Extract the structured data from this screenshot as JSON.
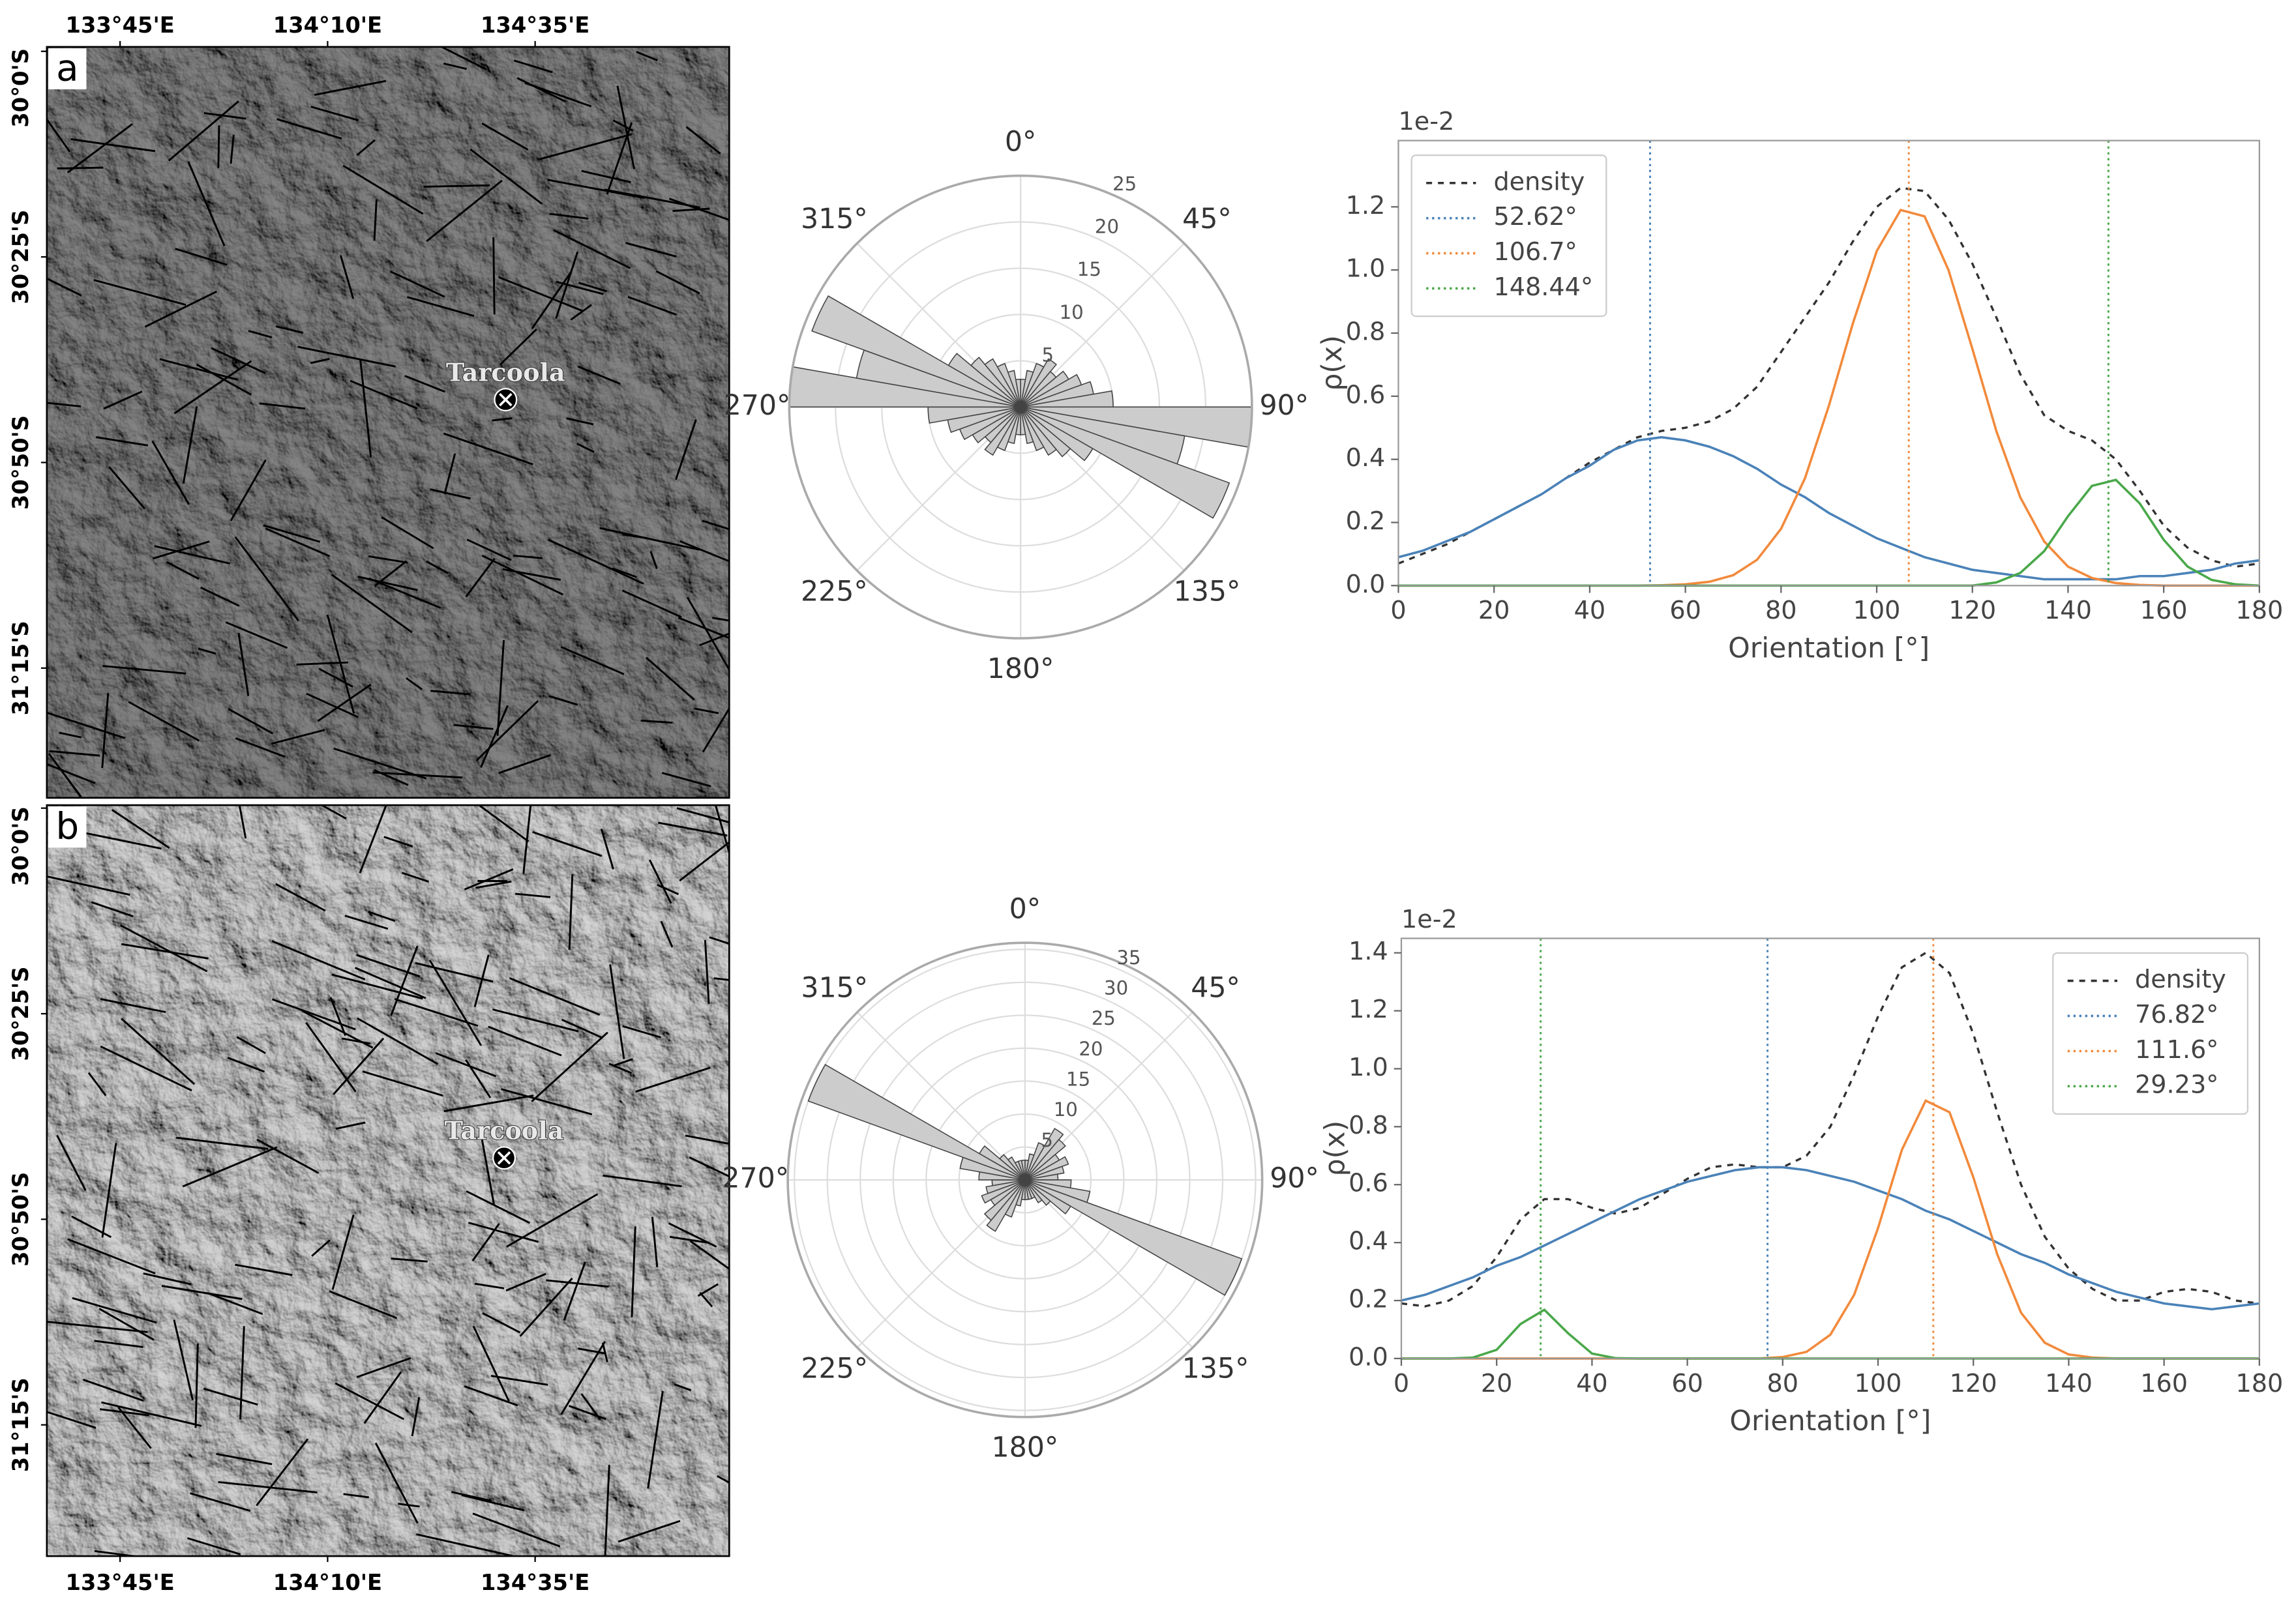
{
  "chart_data": [
    {
      "type": "map",
      "label": "a",
      "color": "#7a7a7a",
      "xtick_side": "top",
      "place": {
        "name": "Tarcoola",
        "lon": 134.524,
        "lat": -30.706
      },
      "xlim": [
        133.603,
        134.973
      ],
      "ylim": [
        -31.513,
        -29.991
      ],
      "xticks": [
        {
          "value": 133.75,
          "label": "133°45'E"
        },
        {
          "value": 134.1667,
          "label": "134°10'E"
        },
        {
          "value": 134.5833,
          "label": "134°35'E"
        }
      ],
      "yticks": [
        {
          "value": -30,
          "label": "30°0'S"
        },
        {
          "value": -30.4167,
          "label": "30°25'S"
        },
        {
          "value": -30.8333,
          "label": "30°50'S"
        },
        {
          "value": -31.25,
          "label": "31°15'S"
        }
      ]
    },
    {
      "type": "rose",
      "color": "#cccccc",
      "theta": [
        5,
        15,
        25,
        35,
        45,
        55,
        65,
        75,
        85,
        95,
        105,
        115,
        125,
        135,
        145,
        155,
        165,
        175,
        185,
        195,
        205,
        215,
        225,
        235,
        245,
        255,
        265,
        275,
        285,
        295,
        305,
        315,
        325,
        335,
        345,
        355
      ],
      "values": [
        3,
        4,
        5,
        6,
        5,
        6,
        7,
        8,
        10,
        25,
        18,
        24,
        9,
        7,
        6,
        5,
        4,
        3,
        3,
        4,
        5,
        6,
        5,
        6,
        7,
        8,
        10,
        25,
        18,
        24,
        9,
        7,
        6,
        5,
        4,
        3
      ],
      "xticks": [
        {
          "value": 0,
          "label": "0°"
        },
        {
          "value": 45,
          "label": "45°"
        },
        {
          "value": 90,
          "label": "90°"
        },
        {
          "value": 135,
          "label": "135°"
        },
        {
          "value": 180,
          "label": "180°"
        },
        {
          "value": 225,
          "label": "225°"
        },
        {
          "value": 270,
          "label": "270°"
        },
        {
          "value": 315,
          "label": "315°"
        }
      ],
      "ylim": [
        0,
        25
      ],
      "yticks": [
        5,
        10,
        15,
        20,
        25
      ]
    },
    {
      "type": "line",
      "xlabel": "Orientation [°]",
      "ylabel": "ρ(x)",
      "offset_label": "1e-2",
      "legend": "upper left",
      "x": [
        0,
        5,
        10,
        15,
        20,
        25,
        30,
        35,
        40,
        45,
        50,
        55,
        60,
        65,
        70,
        75,
        80,
        85,
        90,
        95,
        100,
        105,
        110,
        115,
        120,
        125,
        130,
        135,
        140,
        145,
        150,
        155,
        160,
        165,
        170,
        175,
        180
      ],
      "series": [
        {
          "name": "density",
          "color": "#333333",
          "style": "dashed",
          "values": [
            0.07,
            0.1,
            0.13,
            0.17,
            0.21,
            0.25,
            0.29,
            0.34,
            0.39,
            0.43,
            0.47,
            0.49,
            0.5,
            0.52,
            0.56,
            0.63,
            0.74,
            0.85,
            0.96,
            1.09,
            1.2,
            1.26,
            1.25,
            1.16,
            1.02,
            0.85,
            0.67,
            0.54,
            0.49,
            0.46,
            0.4,
            0.3,
            0.19,
            0.12,
            0.08,
            0.06,
            0.07
          ]
        },
        {
          "color": "#4a82b8",
          "style": "solid",
          "values": [
            0.09,
            0.11,
            0.14,
            0.17,
            0.21,
            0.25,
            0.29,
            0.34,
            0.38,
            0.43,
            0.46,
            0.47,
            0.46,
            0.44,
            0.41,
            0.37,
            0.32,
            0.28,
            0.23,
            0.19,
            0.15,
            0.12,
            0.09,
            0.07,
            0.05,
            0.04,
            0.03,
            0.02,
            0.02,
            0.02,
            0.02,
            0.03,
            0.03,
            0.04,
            0.05,
            0.07,
            0.08
          ]
        },
        {
          "color": "#f28a3c",
          "style": "solid",
          "values": [
            0,
            0,
            0,
            0,
            0,
            0,
            0,
            0,
            0,
            0,
            0,
            0.001,
            0.004,
            0.012,
            0.033,
            0.082,
            0.18,
            0.34,
            0.57,
            0.83,
            1.06,
            1.19,
            1.17,
            1.0,
            0.75,
            0.49,
            0.28,
            0.14,
            0.06,
            0.024,
            0.008,
            0.002,
            0,
            0,
            0,
            0,
            0
          ]
        },
        {
          "color": "#4aa84a",
          "style": "solid",
          "values": [
            0,
            0,
            0,
            0,
            0,
            0,
            0,
            0,
            0,
            0,
            0,
            0,
            0,
            0,
            0,
            0,
            0,
            0,
            0,
            0,
            0,
            0,
            0,
            0,
            0,
            0.01,
            0.04,
            0.109,
            0.22,
            0.316,
            0.335,
            0.26,
            0.145,
            0.06,
            0.018,
            0.004,
            0
          ]
        }
      ],
      "markers": [
        {
          "name": "52.62°",
          "value": 52.62,
          "color": "#4a82b8"
        },
        {
          "name": "106.7°",
          "value": 106.7,
          "color": "#f28a3c"
        },
        {
          "name": "148.44°",
          "value": 148.44,
          "color": "#4aa84a"
        }
      ],
      "xlim": [
        0,
        180
      ],
      "xticks": [
        0,
        20,
        40,
        60,
        80,
        100,
        120,
        140,
        160,
        180
      ],
      "ylim": [
        0,
        1.41
      ],
      "yticks": [
        {
          "value": 0,
          "label": "0.0"
        },
        {
          "value": 0.2,
          "label": "0.2"
        },
        {
          "value": 0.4,
          "label": "0.4"
        },
        {
          "value": 0.6,
          "label": "0.6"
        },
        {
          "value": 0.8,
          "label": "0.8"
        },
        {
          "value": 1.0,
          "label": "1.0"
        },
        {
          "value": 1.2,
          "label": "1.2"
        }
      ]
    },
    {
      "type": "map",
      "label": "b",
      "color": "#c4c4c4",
      "xtick_side": "bottom",
      "place": {
        "name": "Tarcoola",
        "lon": 134.521,
        "lat": -30.709
      },
      "xlim": [
        133.603,
        134.973
      ],
      "ylim": [
        -31.516,
        -29.994
      ],
      "xticks": [
        {
          "value": 133.75,
          "label": "133°45'E"
        },
        {
          "value": 134.1667,
          "label": "134°10'E"
        },
        {
          "value": 134.5833,
          "label": "134°35'E"
        }
      ],
      "yticks": [
        {
          "value": -30,
          "label": "30°0'S"
        },
        {
          "value": -30.4167,
          "label": "30°25'S"
        },
        {
          "value": -30.8333,
          "label": "30°50'S"
        },
        {
          "value": -31.25,
          "label": "31°15'S"
        }
      ]
    },
    {
      "type": "rose",
      "color": "#cccccc",
      "theta": [
        5,
        15,
        25,
        35,
        45,
        55,
        65,
        75,
        85,
        95,
        105,
        115,
        125,
        135,
        145,
        155,
        165,
        175,
        185,
        195,
        205,
        215,
        225,
        235,
        245,
        255,
        265,
        275,
        285,
        295,
        305,
        315,
        325,
        335,
        345,
        355
      ],
      "values": [
        3,
        4,
        6,
        9,
        8,
        6,
        7,
        6,
        5,
        7,
        10,
        35,
        8,
        5,
        4,
        3,
        3,
        3,
        3,
        4,
        6,
        9,
        8,
        6,
        7,
        6,
        5,
        7,
        10,
        35,
        8,
        5,
        4,
        3,
        3,
        3
      ],
      "xticks": [
        {
          "value": 0,
          "label": "0°"
        },
        {
          "value": 45,
          "label": "45°"
        },
        {
          "value": 90,
          "label": "90°"
        },
        {
          "value": 135,
          "label": "135°"
        },
        {
          "value": 180,
          "label": "180°"
        },
        {
          "value": 225,
          "label": "225°"
        },
        {
          "value": 270,
          "label": "270°"
        },
        {
          "value": 315,
          "label": "315°"
        }
      ],
      "ylim": [
        0,
        36
      ],
      "yticks": [
        5,
        10,
        15,
        20,
        25,
        30,
        35
      ]
    },
    {
      "type": "line",
      "xlabel": "Orientation [°]",
      "ylabel": "ρ(x)",
      "offset_label": "1e-2",
      "legend": "upper right",
      "x": [
        0,
        5,
        10,
        15,
        20,
        25,
        30,
        35,
        40,
        45,
        50,
        55,
        60,
        65,
        70,
        75,
        80,
        85,
        90,
        95,
        100,
        105,
        110,
        115,
        120,
        125,
        130,
        135,
        140,
        145,
        150,
        155,
        160,
        165,
        170,
        175,
        180
      ],
      "series": [
        {
          "name": "density",
          "color": "#333333",
          "style": "dashed",
          "values": [
            0.19,
            0.18,
            0.2,
            0.25,
            0.35,
            0.48,
            0.55,
            0.55,
            0.52,
            0.5,
            0.52,
            0.57,
            0.62,
            0.66,
            0.67,
            0.66,
            0.66,
            0.7,
            0.8,
            0.98,
            1.18,
            1.35,
            1.4,
            1.33,
            1.12,
            0.85,
            0.6,
            0.42,
            0.31,
            0.24,
            0.2,
            0.2,
            0.23,
            0.24,
            0.23,
            0.2,
            0.19
          ]
        },
        {
          "color": "#4a82b8",
          "style": "solid",
          "values": [
            0.2,
            0.22,
            0.25,
            0.28,
            0.32,
            0.35,
            0.39,
            0.43,
            0.47,
            0.51,
            0.55,
            0.58,
            0.61,
            0.63,
            0.65,
            0.66,
            0.66,
            0.65,
            0.63,
            0.61,
            0.58,
            0.55,
            0.51,
            0.48,
            0.44,
            0.4,
            0.36,
            0.33,
            0.29,
            0.26,
            0.23,
            0.21,
            0.19,
            0.18,
            0.17,
            0.18,
            0.19
          ]
        },
        {
          "color": "#f28a3c",
          "style": "solid",
          "values": [
            0,
            0,
            0,
            0,
            0,
            0,
            0,
            0,
            0,
            0,
            0,
            0,
            0,
            0,
            0,
            0,
            0.005,
            0.023,
            0.082,
            0.22,
            0.45,
            0.72,
            0.89,
            0.85,
            0.625,
            0.36,
            0.158,
            0.054,
            0.014,
            0.003,
            0,
            0,
            0,
            0,
            0,
            0,
            0
          ]
        },
        {
          "color": "#4aa84a",
          "style": "solid",
          "values": [
            0,
            0,
            0,
            0.003,
            0.03,
            0.119,
            0.168,
            0.087,
            0.017,
            0.001,
            0,
            0,
            0,
            0,
            0,
            0,
            0,
            0,
            0,
            0,
            0,
            0,
            0,
            0,
            0,
            0,
            0,
            0,
            0,
            0,
            0,
            0,
            0,
            0,
            0,
            0,
            0
          ]
        }
      ],
      "markers": [
        {
          "name": "76.82°",
          "value": 76.82,
          "color": "#4a82b8"
        },
        {
          "name": "111.6°",
          "value": 111.6,
          "color": "#f28a3c"
        },
        {
          "name": "29.23°",
          "value": 29.23,
          "color": "#4aa84a"
        }
      ],
      "xlim": [
        0,
        180
      ],
      "xticks": [
        0,
        20,
        40,
        60,
        80,
        100,
        120,
        140,
        160,
        180
      ],
      "ylim": [
        0,
        1.45
      ],
      "yticks": [
        {
          "value": 0,
          "label": "0.0"
        },
        {
          "value": 0.2,
          "label": "0.2"
        },
        {
          "value": 0.4,
          "label": "0.4"
        },
        {
          "value": 0.6,
          "label": "0.6"
        },
        {
          "value": 0.8,
          "label": "0.8"
        },
        {
          "value": 1.0,
          "label": "1.0"
        },
        {
          "value": 1.2,
          "label": "1.2"
        },
        {
          "value": 1.4,
          "label": "1.4"
        }
      ]
    }
  ]
}
